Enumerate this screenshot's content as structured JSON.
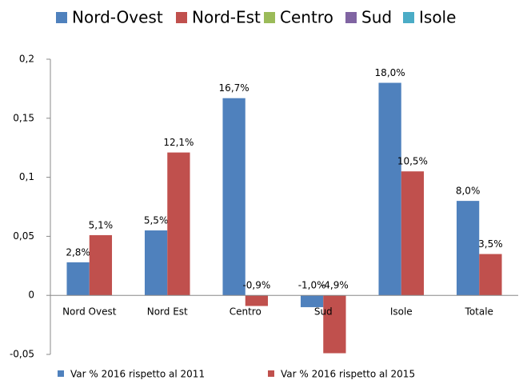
{
  "chart_data": {
    "type": "bar",
    "top_legend": [
      {
        "name": "Nord-Ovest",
        "color": "#4f81bd"
      },
      {
        "name": "Nord-Est",
        "color": "#c0504d"
      },
      {
        "name": "Centro",
        "color": "#9bbb59"
      },
      {
        "name": "Sud",
        "color": "#8064a2"
      },
      {
        "name": "Isole",
        "color": "#4bacc6"
      }
    ],
    "categories": [
      "Nord Ovest",
      "Nord Est",
      "Centro",
      "Sud",
      "Isole",
      "Totale"
    ],
    "series": [
      {
        "name": "Var % 2016 rispetto al 2011",
        "color": "#4f81bd",
        "values": [
          0.028,
          0.055,
          0.167,
          -0.01,
          0.18,
          0.08
        ],
        "value_labels": [
          "2,8%",
          "5,5%",
          "16,7%",
          "-1,0%",
          "18,0%",
          "8,0%"
        ]
      },
      {
        "name": "Var % 2016 rispetto al 2015",
        "color": "#c0504d",
        "values": [
          0.051,
          0.121,
          -0.009,
          -0.049,
          0.105,
          0.035
        ],
        "value_labels": [
          "5,1%",
          "12,1%",
          "-0,9%",
          "-4,9%",
          "10,5%",
          "3,5%"
        ]
      }
    ],
    "ylim": [
      -0.05,
      0.2
    ],
    "yticks": [
      {
        "value": -0.05,
        "label": "-0,05"
      },
      0,
      {
        "value": 0.05,
        "label": "0,05"
      },
      {
        "value": 0.1,
        "label": "0,1"
      },
      {
        "value": 0.15,
        "label": "0,15"
      },
      {
        "value": 0.2,
        "label": "0,2"
      }
    ],
    "grid": false,
    "legend": "bottom"
  }
}
